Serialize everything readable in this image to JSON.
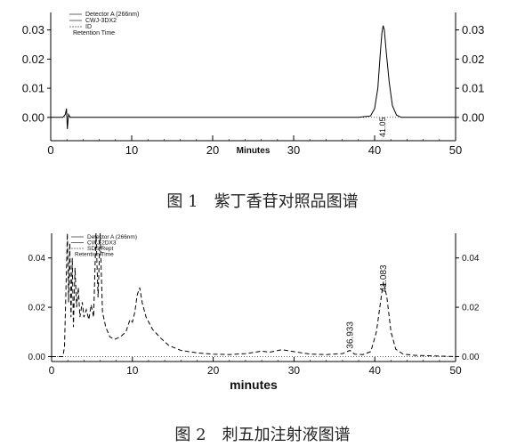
{
  "chart_data": [
    {
      "type": "line",
      "caption": "图 1　紫丁香苷对照品图谱",
      "xlabel": "Minutes",
      "xlim": [
        0,
        50
      ],
      "xticks": [
        "0",
        "10",
        "20",
        "30",
        "40",
        "50"
      ],
      "ylim": [
        -0.008,
        0.036
      ],
      "yticks_left": [
        "0.00",
        "0.01",
        "0.02",
        "0.03"
      ],
      "yticks_right": [
        "0.00",
        "0.01",
        "0.02",
        "0.03"
      ],
      "legend": [
        "Detector A (266nm)",
        "CWJ-3DX2",
        "ID",
        "Retention Time"
      ],
      "peak_labels": [
        {
          "x": 41.0,
          "label": "41.05"
        }
      ],
      "series": [
        {
          "values": [
            [
              0,
              0
            ],
            [
              1.5,
              0
            ],
            [
              1.8,
              0.001
            ],
            [
              1.95,
              0.003
            ],
            [
              2.05,
              -0.004
            ],
            [
              2.2,
              0.001
            ],
            [
              2.4,
              0
            ],
            [
              38,
              0
            ],
            [
              39.5,
              0.0005
            ],
            [
              40,
              0.003
            ],
            [
              40.4,
              0.01
            ],
            [
              40.7,
              0.022
            ],
            [
              40.9,
              0.029
            ],
            [
              41.05,
              0.0315
            ],
            [
              41.2,
              0.03
            ],
            [
              41.45,
              0.022
            ],
            [
              41.8,
              0.012
            ],
            [
              42.2,
              0.004
            ],
            [
              42.7,
              0.0008
            ],
            [
              43.3,
              0
            ],
            [
              50,
              0
            ]
          ]
        }
      ]
    },
    {
      "type": "line",
      "caption": "图 2　刺五加注射液图谱",
      "xlabel": "minutes",
      "xlim": [
        0,
        50
      ],
      "xticks": [
        "0",
        "10",
        "20",
        "30",
        "40",
        "50"
      ],
      "ylim": [
        -0.002,
        0.05
      ],
      "yticks_left": [
        "0.00",
        "0.02",
        "0.04"
      ],
      "yticks_right": [
        "0.00",
        "0.02",
        "0.04"
      ],
      "legend": [
        "Detector A (266nm)",
        "CWJ-2DX3",
        "SDS-Rept",
        "Retention Time"
      ],
      "peak_labels": [
        {
          "x": 36.933,
          "label": "36.933"
        },
        {
          "x": 41.083,
          "label": "41.083"
        }
      ],
      "series": [
        {
          "values": [
            [
              0,
              0
            ],
            [
              1.4,
              0
            ],
            [
              1.6,
              0.004
            ],
            [
              1.8,
              0.03
            ],
            [
              1.95,
              0.05
            ],
            [
              2.1,
              0.022
            ],
            [
              2.25,
              0.046
            ],
            [
              2.4,
              0.016
            ],
            [
              2.55,
              0.04
            ],
            [
              2.7,
              0.012
            ],
            [
              2.9,
              0.036
            ],
            [
              3.1,
              0.02
            ],
            [
              3.3,
              0.028
            ],
            [
              3.5,
              0.016
            ],
            [
              3.8,
              0.022
            ],
            [
              4.0,
              0.016
            ],
            [
              4.3,
              0.019
            ],
            [
              4.6,
              0.015
            ],
            [
              4.9,
              0.021
            ],
            [
              5.2,
              0.016
            ],
            [
              5.5,
              0.05
            ],
            [
              5.75,
              0.024
            ],
            [
              6.0,
              0.05
            ],
            [
              6.3,
              0.018
            ],
            [
              6.7,
              0.012
            ],
            [
              7.2,
              0.008
            ],
            [
              7.8,
              0.007
            ],
            [
              8.5,
              0.008
            ],
            [
              9.2,
              0.01
            ],
            [
              9.7,
              0.015
            ],
            [
              10.0,
              0.014
            ],
            [
              10.3,
              0.018
            ],
            [
              10.6,
              0.025
            ],
            [
              10.9,
              0.028
            ],
            [
              11.2,
              0.022
            ],
            [
              11.7,
              0.016
            ],
            [
              12.5,
              0.011
            ],
            [
              13.5,
              0.0075
            ],
            [
              14.5,
              0.0045
            ],
            [
              16,
              0.0025
            ],
            [
              18,
              0.0015
            ],
            [
              20,
              0.001
            ],
            [
              22,
              0.0008
            ],
            [
              24,
              0.0012
            ],
            [
              26,
              0.0022
            ],
            [
              27,
              0.0018
            ],
            [
              28.5,
              0.0028
            ],
            [
              30,
              0.002
            ],
            [
              32,
              0.001
            ],
            [
              34,
              0.0008
            ],
            [
              36,
              0.0012
            ],
            [
              36.93,
              0.0025
            ],
            [
              37.5,
              0.001
            ],
            [
              38.5,
              0.0008
            ],
            [
              39.5,
              0.002
            ],
            [
              40.2,
              0.01
            ],
            [
              40.7,
              0.022
            ],
            [
              41.08,
              0.0305
            ],
            [
              41.5,
              0.024
            ],
            [
              42.0,
              0.01
            ],
            [
              42.6,
              0.003
            ],
            [
              43.5,
              0.001
            ],
            [
              45,
              0.0005
            ],
            [
              50,
              0
            ]
          ]
        }
      ]
    }
  ]
}
